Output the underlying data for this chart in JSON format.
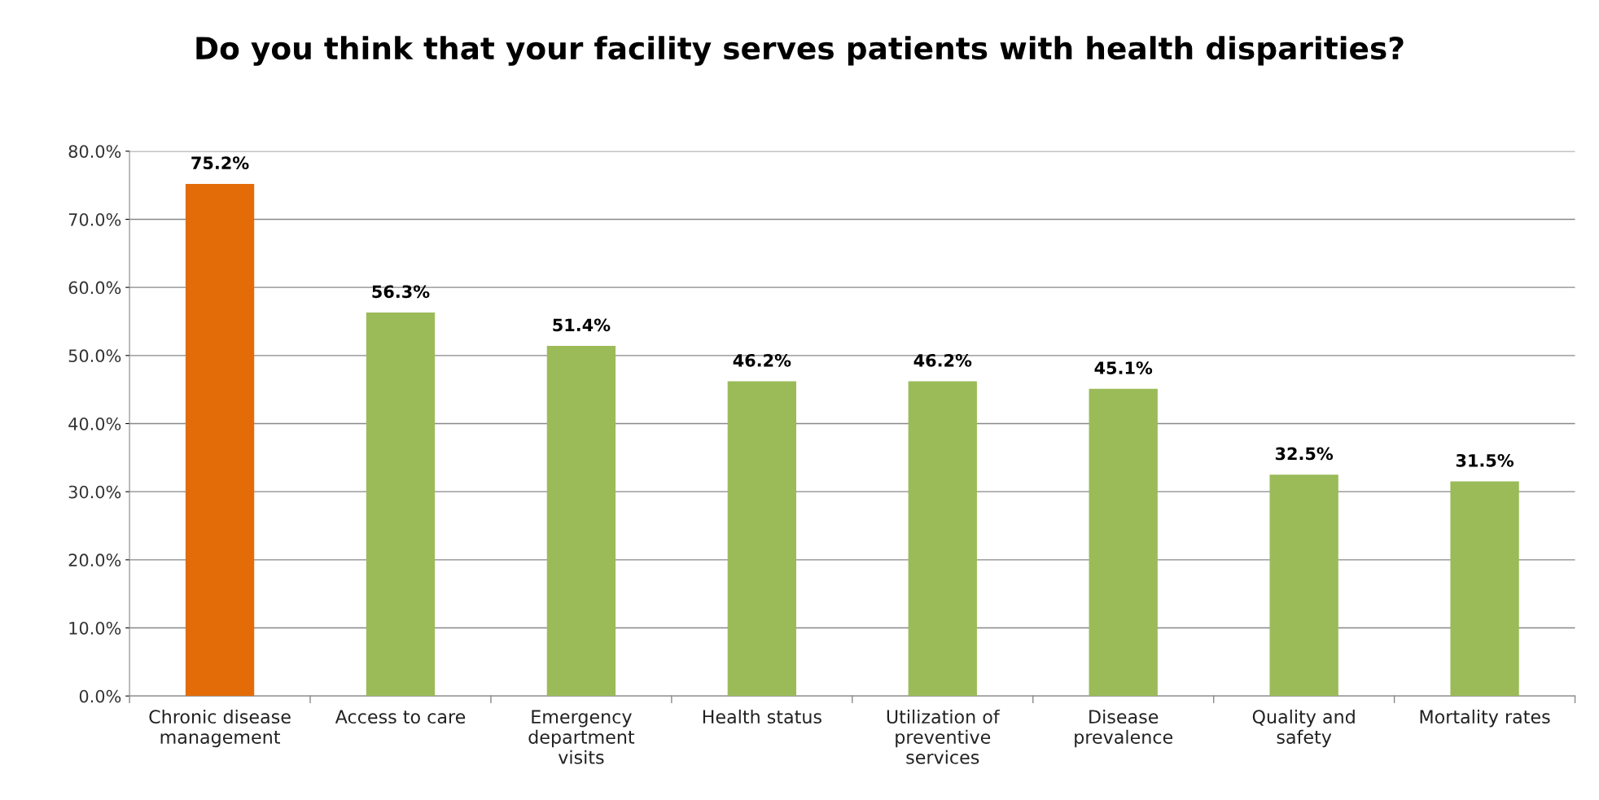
{
  "chart_data": {
    "type": "bar",
    "title": "Do you think that your facility serves patients with health disparities?",
    "categories": [
      "Chronic disease management",
      "Access to care",
      "Emergency department visits",
      "Health status",
      "Utilization of preventive services",
      "Disease prevalence",
      "Quality and safety",
      "Mortality rates"
    ],
    "values": [
      75.2,
      56.3,
      51.4,
      46.2,
      46.2,
      45.1,
      32.5,
      31.5
    ],
    "value_labels": [
      "75.2%",
      "56.3%",
      "51.4%",
      "46.2%",
      "46.2%",
      "45.1%",
      "32.5%",
      "31.5%"
    ],
    "colors": [
      "#e36c09",
      "#9bbb59",
      "#9bbb59",
      "#9bbb59",
      "#9bbb59",
      "#9bbb59",
      "#9bbb59",
      "#9bbb59"
    ],
    "ylim": [
      0,
      80
    ],
    "yticks": [
      {
        "value": 0,
        "label": "0.0%"
      },
      {
        "value": 10,
        "label": "10.0%"
      },
      {
        "value": 20,
        "label": "20.0%"
      },
      {
        "value": 30,
        "label": "30.0%"
      },
      {
        "value": 40,
        "label": "40.0%"
      },
      {
        "value": 50,
        "label": "50.0%"
      },
      {
        "value": 60,
        "label": "60.0%"
      },
      {
        "value": 70,
        "label": "70.0%"
      },
      {
        "value": 80,
        "label": "80.0%"
      }
    ],
    "grid": "y",
    "legend": false
  }
}
